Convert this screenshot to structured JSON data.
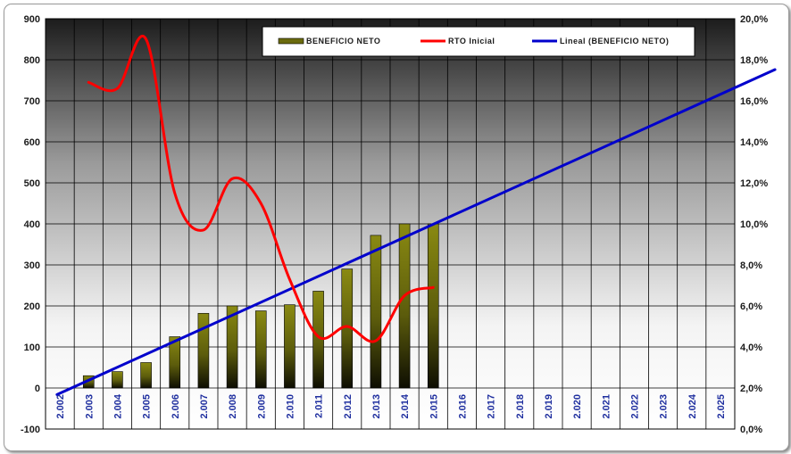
{
  "chart_data": {
    "type": "bar",
    "categories": [
      "2.002",
      "2.003",
      "2.004",
      "2.005",
      "2.006",
      "2.007",
      "2.008",
      "2.009",
      "2.010",
      "2.011",
      "2.012",
      "2.013",
      "2.014",
      "2.015",
      "2.016",
      "2.017",
      "2.018",
      "2.019",
      "2.020",
      "2.021",
      "2.022",
      "2.023",
      "2.024",
      "2.025"
    ],
    "y_left": {
      "min": -100,
      "max": 900,
      "step": 100,
      "ticks": [
        "-100",
        "0",
        "100",
        "200",
        "300",
        "400",
        "500",
        "600",
        "700",
        "800",
        "900"
      ]
    },
    "y_right": {
      "min": 0.0,
      "max": 20.0,
      "step": 2.0,
      "ticks": [
        "0,0%",
        "2,0%",
        "4,0%",
        "6,0%",
        "8,0%",
        "10,0%",
        "12,0%",
        "14,0%",
        "16,0%",
        "18,0%",
        "20,0%"
      ]
    },
    "series": [
      {
        "name": "BENEFICIO NETO",
        "type": "bar",
        "axis": "left",
        "color": "#7a7a10",
        "values": [
          null,
          30,
          40,
          62,
          125,
          182,
          200,
          188,
          203,
          236,
          290,
          372,
          400,
          400,
          null,
          null,
          null,
          null,
          null,
          null,
          null,
          null,
          null,
          null
        ]
      },
      {
        "name": "RTO Inicial",
        "type": "line",
        "axis": "right",
        "color": "#ff0000",
        "smooth": true,
        "values": [
          null,
          16.9,
          16.6,
          19.0,
          11.5,
          9.7,
          12.2,
          11.0,
          7.3,
          4.5,
          5.0,
          4.3,
          6.5,
          6.9,
          null,
          null,
          null,
          null,
          null,
          null,
          null,
          null,
          null,
          null
        ]
      },
      {
        "name": "Lineal (BENEFICIO NETO)",
        "type": "trendline",
        "axis": "left",
        "color": "#0000cc",
        "points": [
          [
            -0.1,
            -16
          ],
          [
            24.9,
            776
          ]
        ]
      }
    ],
    "grid": true,
    "legend_position": "top-right"
  }
}
